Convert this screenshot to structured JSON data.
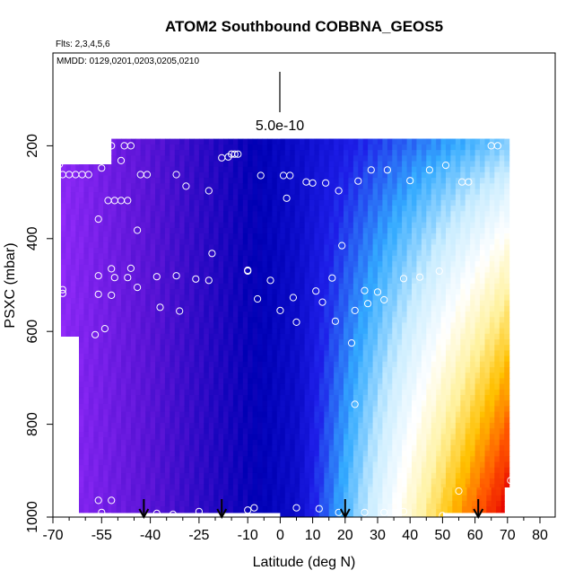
{
  "chart_data": {
    "type": "heatmap",
    "title": "ATOM2 Southbound COBBNA_GEOS5",
    "subtitle_flights": "Flts: 2,3,4,5,6",
    "subtitle_dates": "MMDD: 0129,0201,0203,0205,0210",
    "xlabel": "Latitude (deg N)",
    "ylabel": "PSXC (mbar)",
    "xlim": [
      -70,
      80
    ],
    "ylim": [
      1000,
      0
    ],
    "x_ticks": [
      -70,
      -55,
      -40,
      -25,
      -10,
      0,
      10,
      20,
      30,
      40,
      50,
      60,
      70,
      80
    ],
    "x_tick_labels": [
      "-70",
      "-55",
      "-40",
      "-25",
      "-10",
      "0",
      "10",
      "20",
      "30",
      "40",
      "50",
      "60",
      "70",
      "80"
    ],
    "x_minor_ticks": [
      -65,
      -60,
      -50,
      -45,
      -35,
      -30,
      -20,
      -15,
      -5,
      5,
      15,
      25,
      35,
      45,
      55,
      65,
      75
    ],
    "y_ticks": [
      200,
      400,
      600,
      800,
      1000
    ],
    "y_tick_labels": [
      "200",
      "400",
      "600",
      "800",
      "1000"
    ],
    "scale_bar_label": "5.0e-10",
    "color_scale": [
      "#9a2eff",
      "#5a14d6",
      "#0000b4",
      "#1e1ee8",
      "#33aaff",
      "#c8ecff",
      "#ffffff",
      "#fff2a0",
      "#ffc000",
      "#ff5500",
      "#e60000"
    ],
    "columns": [
      {
        "x0": -67.5,
        "x1": 12,
        "ptop": 240,
        "pbot": 610
      },
      {
        "x0": -62,
        "x1": 0,
        "ptop": 240,
        "pbot": 990
      },
      {
        "x0": -52,
        "x1": 69,
        "ptop": 185,
        "pbot": 990
      },
      {
        "x0": 0,
        "x1": 70.5,
        "ptop": 185,
        "pbot": 935
      },
      {
        "x0": 0,
        "x1": 50,
        "ptop": 935,
        "pbot": 1000
      }
    ],
    "obs_points": [
      {
        "lat": -68,
        "p": 240
      },
      {
        "lat": -67,
        "p": 262
      },
      {
        "lat": -65,
        "p": 262
      },
      {
        "lat": -63,
        "p": 262
      },
      {
        "lat": -61,
        "p": 262
      },
      {
        "lat": -59,
        "p": 262
      },
      {
        "lat": -55,
        "p": 232
      },
      {
        "lat": -55,
        "p": 248
      },
      {
        "lat": -52,
        "p": 200
      },
      {
        "lat": -48,
        "p": 200
      },
      {
        "lat": -46,
        "p": 200
      },
      {
        "lat": -49,
        "p": 232
      },
      {
        "lat": -43,
        "p": 262
      },
      {
        "lat": -41,
        "p": 262
      },
      {
        "lat": -32,
        "p": 262
      },
      {
        "lat": -29,
        "p": 287
      },
      {
        "lat": -22,
        "p": 297
      },
      {
        "lat": -18,
        "p": 226
      },
      {
        "lat": -16,
        "p": 224
      },
      {
        "lat": -15,
        "p": 218
      },
      {
        "lat": -14,
        "p": 218
      },
      {
        "lat": -13,
        "p": 218
      },
      {
        "lat": -6,
        "p": 264
      },
      {
        "lat": 1,
        "p": 264
      },
      {
        "lat": 3,
        "p": 264
      },
      {
        "lat": 2,
        "p": 313
      },
      {
        "lat": 8,
        "p": 278
      },
      {
        "lat": 10,
        "p": 280
      },
      {
        "lat": 14,
        "p": 280
      },
      {
        "lat": 18,
        "p": 297
      },
      {
        "lat": 24,
        "p": 276
      },
      {
        "lat": 28,
        "p": 252
      },
      {
        "lat": 33,
        "p": 252
      },
      {
        "lat": 40,
        "p": 275
      },
      {
        "lat": 46,
        "p": 252
      },
      {
        "lat": 51,
        "p": 242
      },
      {
        "lat": 56,
        "p": 278
      },
      {
        "lat": 58,
        "p": 278
      },
      {
        "lat": 65,
        "p": 200
      },
      {
        "lat": 67,
        "p": 200
      },
      {
        "lat": -56,
        "p": 358
      },
      {
        "lat": -53,
        "p": 318
      },
      {
        "lat": -51,
        "p": 318
      },
      {
        "lat": -49,
        "p": 318
      },
      {
        "lat": -47,
        "p": 318
      },
      {
        "lat": -44,
        "p": 382
      },
      {
        "lat": -21,
        "p": 432
      },
      {
        "lat": -10,
        "p": 468
      },
      {
        "lat": -10,
        "p": 470
      },
      {
        "lat": 19,
        "p": 415
      },
      {
        "lat": -67,
        "p": 510
      },
      {
        "lat": -67,
        "p": 518
      },
      {
        "lat": -56,
        "p": 480
      },
      {
        "lat": -52,
        "p": 465
      },
      {
        "lat": -51,
        "p": 484
      },
      {
        "lat": -47,
        "p": 484
      },
      {
        "lat": -46,
        "p": 464
      },
      {
        "lat": -44,
        "p": 505
      },
      {
        "lat": -56,
        "p": 520
      },
      {
        "lat": -52,
        "p": 522
      },
      {
        "lat": -38,
        "p": 482
      },
      {
        "lat": -32,
        "p": 480
      },
      {
        "lat": -26,
        "p": 487
      },
      {
        "lat": -22,
        "p": 490
      },
      {
        "lat": -37,
        "p": 548
      },
      {
        "lat": -31,
        "p": 556
      },
      {
        "lat": -7,
        "p": 530
      },
      {
        "lat": -3,
        "p": 490
      },
      {
        "lat": 0,
        "p": 555
      },
      {
        "lat": 4,
        "p": 527
      },
      {
        "lat": 16,
        "p": 485
      },
      {
        "lat": 11,
        "p": 513
      },
      {
        "lat": 13,
        "p": 537
      },
      {
        "lat": 17,
        "p": 578
      },
      {
        "lat": 23,
        "p": 555
      },
      {
        "lat": 26,
        "p": 512
      },
      {
        "lat": 27,
        "p": 540
      },
      {
        "lat": 30,
        "p": 515
      },
      {
        "lat": 32,
        "p": 532
      },
      {
        "lat": 38,
        "p": 486
      },
      {
        "lat": 43,
        "p": 483
      },
      {
        "lat": 49,
        "p": 470
      },
      {
        "lat": 5,
        "p": 580
      },
      {
        "lat": 22,
        "p": 625
      },
      {
        "lat": -57,
        "p": 607
      },
      {
        "lat": -54,
        "p": 594
      },
      {
        "lat": 23,
        "p": 757
      },
      {
        "lat": -68,
        "p": 964
      },
      {
        "lat": -56,
        "p": 964
      },
      {
        "lat": -52,
        "p": 964
      },
      {
        "lat": -55,
        "p": 990
      },
      {
        "lat": -38,
        "p": 992
      },
      {
        "lat": -33,
        "p": 994
      },
      {
        "lat": -25,
        "p": 988
      },
      {
        "lat": -10,
        "p": 985
      },
      {
        "lat": -8,
        "p": 980
      },
      {
        "lat": 5,
        "p": 980
      },
      {
        "lat": 12,
        "p": 982
      },
      {
        "lat": 18,
        "p": 990
      },
      {
        "lat": 26,
        "p": 990
      },
      {
        "lat": 32,
        "p": 990
      },
      {
        "lat": 38,
        "p": 988
      },
      {
        "lat": 50,
        "p": 997
      },
      {
        "lat": 55,
        "p": 944
      },
      {
        "lat": 71,
        "p": 921
      }
    ],
    "bottom_arrows_lat": [
      -42,
      -18,
      20,
      61
    ],
    "arrow_color": "#000000"
  }
}
